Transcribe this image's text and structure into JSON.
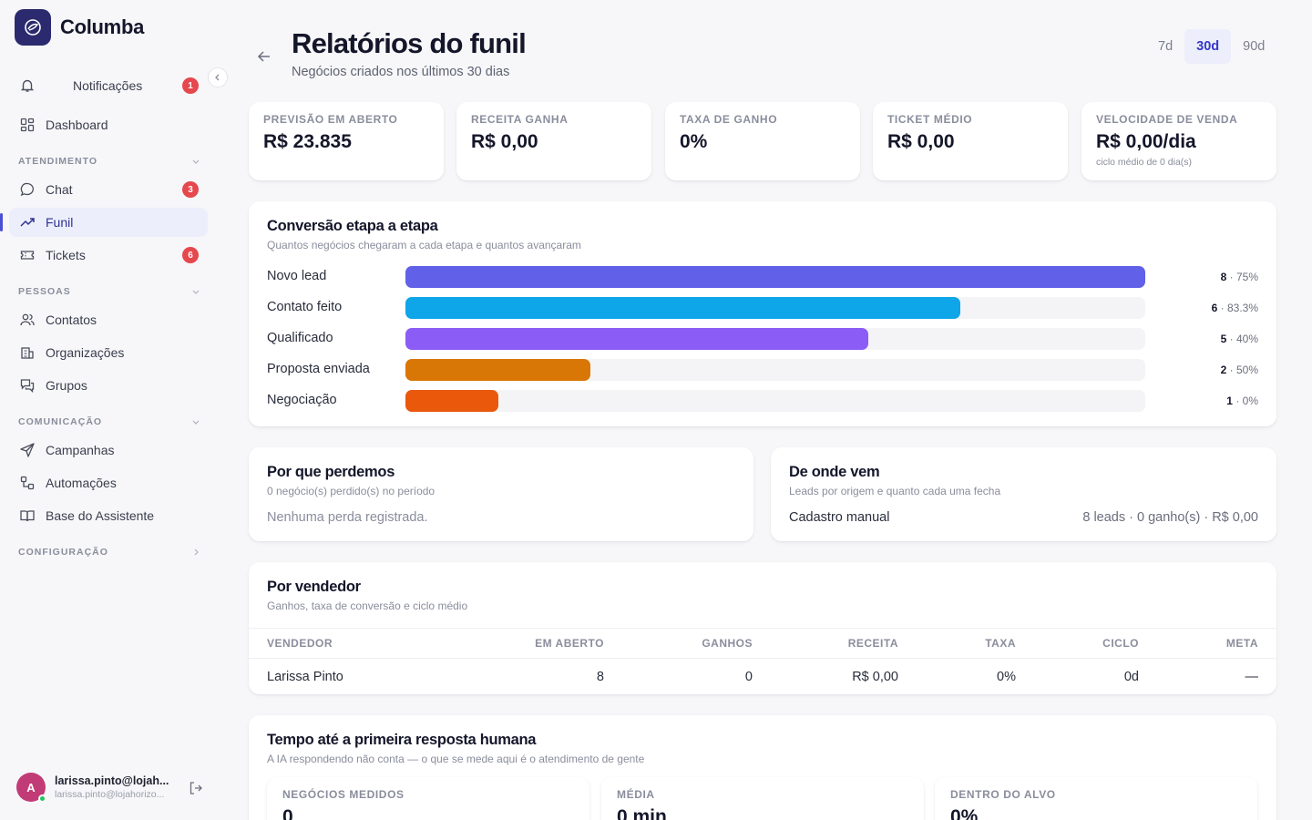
{
  "brand": {
    "name": "Columba"
  },
  "sidebar": {
    "notifications": {
      "label": "Notificações",
      "count": "1"
    },
    "dashboard": {
      "label": "Dashboard"
    },
    "sections": [
      {
        "title": "ATENDIMENTO"
      },
      {
        "title": "PESSOAS"
      },
      {
        "title": "COMUNICAÇÃO"
      },
      {
        "title": "CONFIGURAÇÃO"
      }
    ],
    "items": [
      {
        "label": "Chat",
        "badge": "3"
      },
      {
        "label": "Funil"
      },
      {
        "label": "Tickets",
        "badge": "6"
      },
      {
        "label": "Contatos"
      },
      {
        "label": "Organizações"
      },
      {
        "label": "Grupos"
      },
      {
        "label": "Campanhas"
      },
      {
        "label": "Automações"
      },
      {
        "label": "Base do Assistente"
      }
    ],
    "user": {
      "initial": "A",
      "name": "larissa.pinto@lojah...",
      "email": "larissa.pinto@lojahorizo..."
    }
  },
  "header": {
    "title": "Relatórios do funil",
    "subtitle": "Negócios criados nos últimos 30 dias",
    "ranges": [
      "7d",
      "30d",
      "90d"
    ],
    "selected_range": "30d"
  },
  "kpis": [
    {
      "label": "PREVISÃO EM ABERTO",
      "value": "R$ 23.835"
    },
    {
      "label": "RECEITA GANHA",
      "value": "R$ 0,00"
    },
    {
      "label": "TAXA DE GANHO",
      "value": "0%"
    },
    {
      "label": "TICKET MÉDIO",
      "value": "R$ 0,00"
    },
    {
      "label": "VELOCIDADE DE VENDA",
      "value": "R$ 0,00/dia",
      "note": "ciclo médio de 0 dia(s)"
    }
  ],
  "conversion": {
    "title": "Conversão etapa a etapa",
    "subtitle": "Quantos negócios chegaram a cada etapa e quantos avançaram",
    "stages": [
      {
        "label": "Novo lead",
        "count": "8",
        "rate": "75%",
        "fill": 1.0,
        "color": "#6061e8"
      },
      {
        "label": "Contato feito",
        "count": "6",
        "rate": "83.3%",
        "fill": 0.75,
        "color": "#0ea5e9"
      },
      {
        "label": "Qualificado",
        "count": "5",
        "rate": "40%",
        "fill": 0.625,
        "color": "#8b5cf6"
      },
      {
        "label": "Proposta enviada",
        "count": "2",
        "rate": "50%",
        "fill": 0.25,
        "color": "#d97706"
      },
      {
        "label": "Negociação",
        "count": "1",
        "rate": "0%",
        "fill": 0.125,
        "color": "#ea580c"
      }
    ]
  },
  "losses": {
    "title": "Por que perdemos",
    "subtitle": "0 negócio(s) perdido(s) no período",
    "empty": "Nenhuma perda registrada."
  },
  "origins": {
    "title": "De onde vem",
    "subtitle": "Leads por origem e quanto cada uma fecha",
    "rows": [
      {
        "source": "Cadastro manual",
        "summary": "8 leads · 0 ganho(s) · R$ 0,00"
      }
    ]
  },
  "sellers": {
    "title": "Por vendedor",
    "subtitle": "Ganhos, taxa de conversão e ciclo médio",
    "columns": [
      "VENDEDOR",
      "EM ABERTO",
      "GANHOS",
      "RECEITA",
      "TAXA",
      "CICLO",
      "META"
    ],
    "rows": [
      {
        "name": "Larissa Pinto",
        "open": "8",
        "won": "0",
        "revenue": "R$ 0,00",
        "rate": "0%",
        "cycle": "0d",
        "goal": "—"
      }
    ]
  },
  "response": {
    "title": "Tempo até a primeira resposta humana",
    "subtitle": "A IA respondendo não conta — o que se mede aqui é o atendimento de gente",
    "metrics": [
      {
        "label": "NEGÓCIOS MEDIDOS",
        "value": "0"
      },
      {
        "label": "MÉDIA",
        "value": "0 min"
      },
      {
        "label": "DENTRO DO ALVO",
        "value": "0%"
      }
    ]
  },
  "colors": {
    "accent": "#4a4fd6",
    "badge": "#e5484d",
    "brand_bg": "#2b2a6e"
  }
}
